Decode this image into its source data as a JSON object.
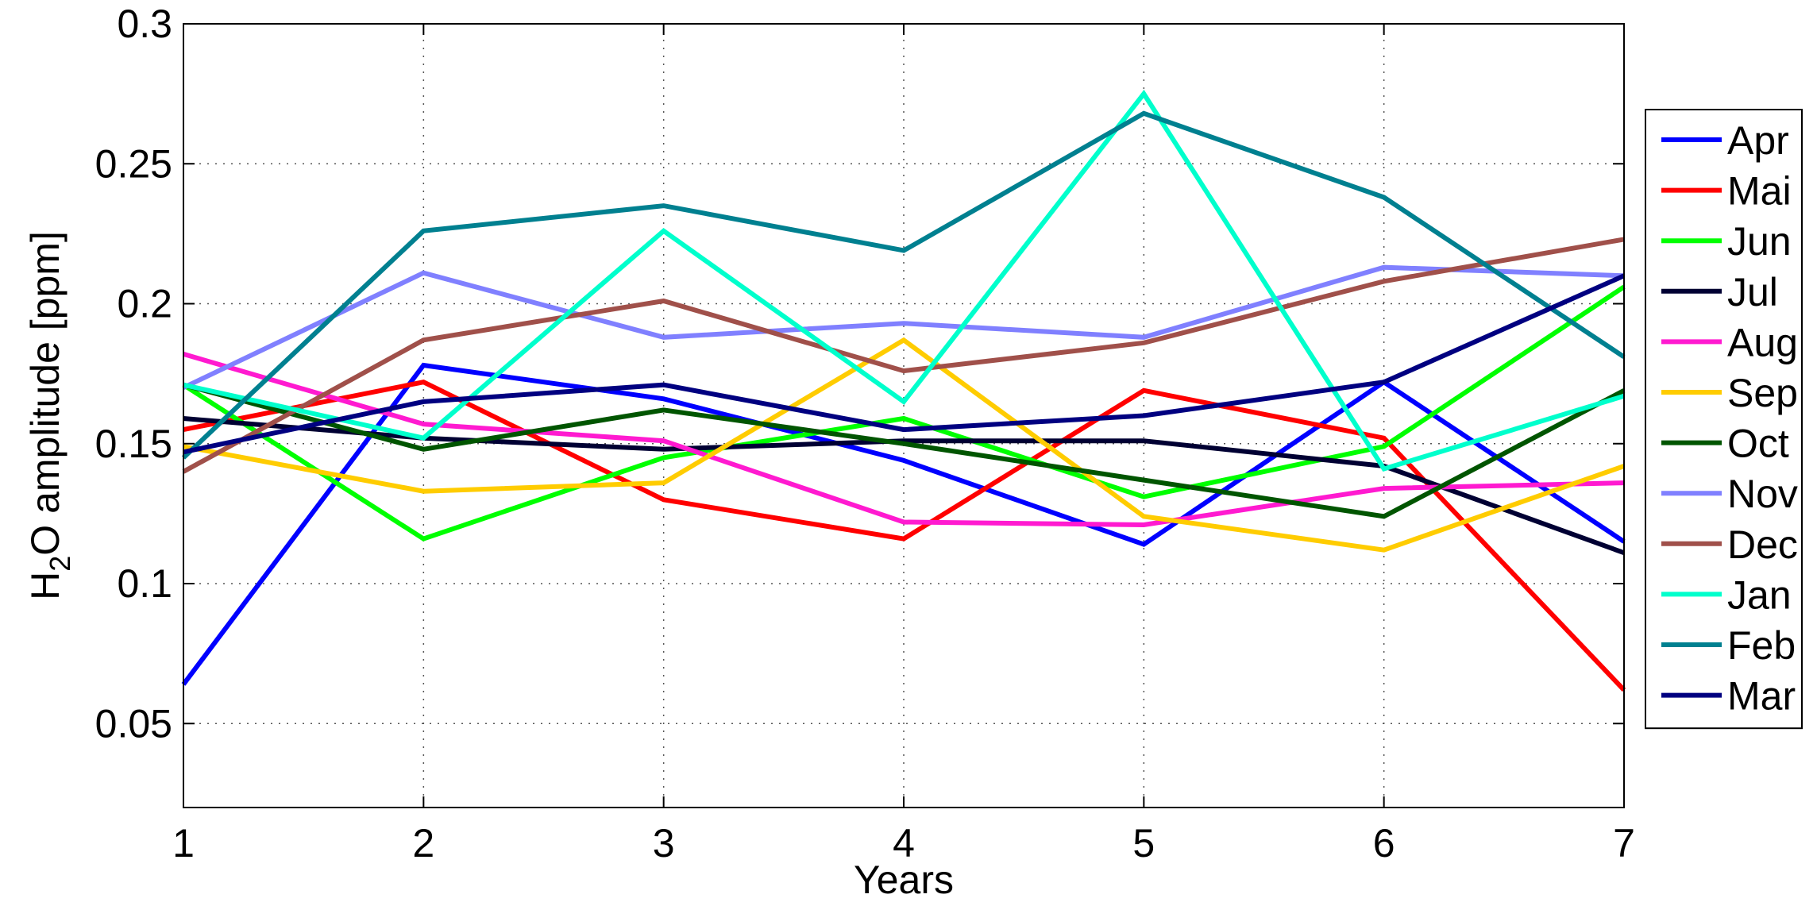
{
  "chart_data": {
    "type": "line",
    "xlabel": "Years",
    "ylabel_parts": {
      "pre": "H",
      "sub": "2",
      "post": "O amplitude [ppm]"
    },
    "xlim": [
      1,
      7
    ],
    "ylim": [
      0.02,
      0.3
    ],
    "xticks": [
      "1",
      "2",
      "3",
      "4",
      "5",
      "6",
      "7"
    ],
    "yticks": [
      "0.05",
      "0.1",
      "0.15",
      "0.2",
      "0.25",
      "0.3"
    ],
    "ytick_values": [
      0.05,
      0.1,
      0.15,
      0.2,
      0.25,
      0.3
    ],
    "grid": true,
    "legend_position": "outside-right",
    "x": [
      1,
      2,
      3,
      4,
      5,
      6,
      7
    ],
    "series": [
      {
        "name": "Apr",
        "color": "#0000ff",
        "values": [
          0.064,
          0.178,
          0.166,
          0.144,
          0.114,
          0.172,
          0.115
        ]
      },
      {
        "name": "Mai",
        "color": "#ff0000",
        "values": [
          0.155,
          0.172,
          0.13,
          0.116,
          0.169,
          0.152,
          0.062
        ]
      },
      {
        "name": "Jun",
        "color": "#00ff00",
        "values": [
          0.171,
          0.116,
          0.145,
          0.159,
          0.131,
          0.149,
          0.206
        ]
      },
      {
        "name": "Jul",
        "color": "#000033",
        "values": [
          0.159,
          0.152,
          0.148,
          0.151,
          0.151,
          0.142,
          0.111
        ]
      },
      {
        "name": "Aug",
        "color": "#ff1ad0",
        "values": [
          0.182,
          0.157,
          0.151,
          0.122,
          0.121,
          0.134,
          0.136
        ]
      },
      {
        "name": "Sep",
        "color": "#ffcc00",
        "values": [
          0.149,
          0.133,
          0.136,
          0.187,
          0.124,
          0.112,
          0.142
        ]
      },
      {
        "name": "Oct",
        "color": "#005500",
        "values": [
          0.171,
          0.148,
          0.162,
          0.15,
          0.137,
          0.124,
          0.169
        ]
      },
      {
        "name": "Nov",
        "color": "#8080ff",
        "values": [
          0.17,
          0.211,
          0.188,
          0.193,
          0.188,
          0.213,
          0.21
        ]
      },
      {
        "name": "Dec",
        "color": "#a0504a",
        "values": [
          0.14,
          0.187,
          0.201,
          0.176,
          0.186,
          0.208,
          0.223
        ]
      },
      {
        "name": "Jan",
        "color": "#00ffcc",
        "values": [
          0.171,
          0.152,
          0.226,
          0.165,
          0.275,
          0.141,
          0.167
        ]
      },
      {
        "name": "Feb",
        "color": "#008090",
        "values": [
          0.145,
          0.226,
          0.235,
          0.219,
          0.268,
          0.238,
          0.181
        ]
      },
      {
        "name": "Mar",
        "color": "#000080",
        "values": [
          0.147,
          0.165,
          0.171,
          0.155,
          0.16,
          0.172,
          0.21
        ]
      }
    ]
  }
}
